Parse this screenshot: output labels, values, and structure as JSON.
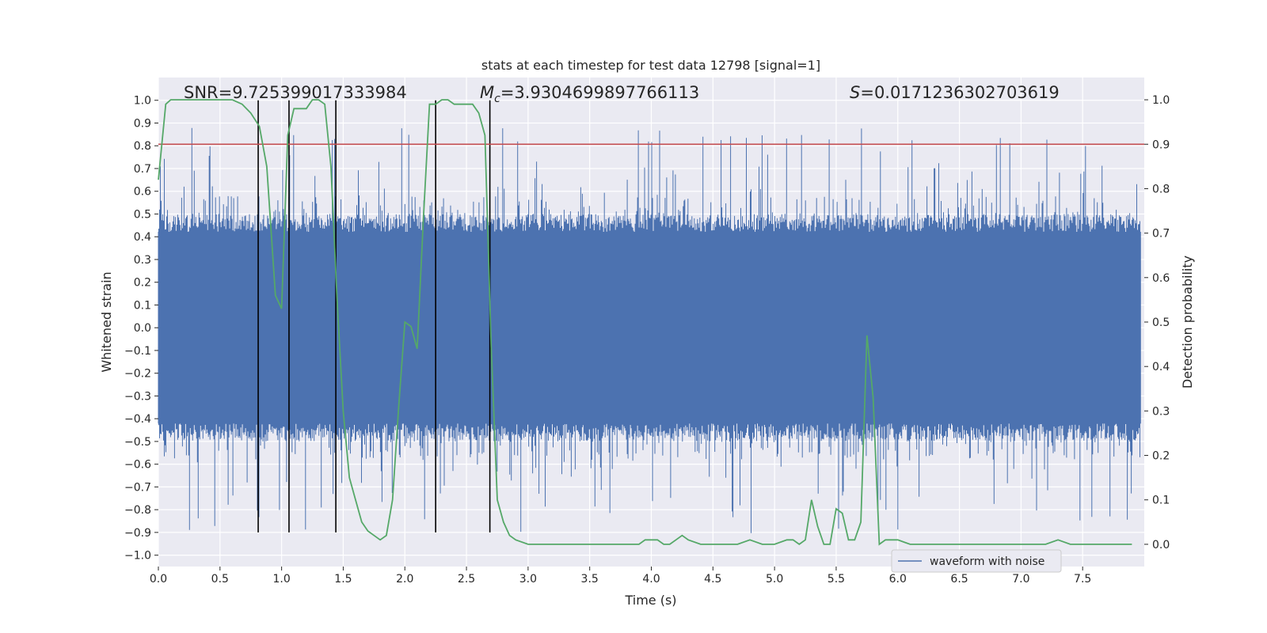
{
  "chart_data": {
    "type": "line",
    "title": "stats at each timestep for test data 12798 [signal=1]",
    "xlabel": "Time (s)",
    "ylabel": "Whitened strain",
    "y2label": "Detection probability",
    "xlim": [
      0.0,
      8.0
    ],
    "ylim": [
      -1.05,
      1.1
    ],
    "y2lim": [
      -0.05,
      1.05
    ],
    "xticks": [
      0.0,
      0.5,
      1.0,
      1.5,
      2.0,
      2.5,
      3.0,
      3.5,
      4.0,
      4.5,
      5.0,
      5.5,
      6.0,
      6.5,
      7.0,
      7.5
    ],
    "xtick_labels": [
      "0.0",
      "0.5",
      "1.0",
      "1.5",
      "2.0",
      "2.5",
      "3.0",
      "3.5",
      "4.0",
      "4.5",
      "5.0",
      "5.5",
      "6.0",
      "6.5",
      "7.0",
      "7.5"
    ],
    "yticks": [
      -1.0,
      -0.9,
      -0.8,
      -0.7,
      -0.6,
      -0.5,
      -0.4,
      -0.3,
      -0.2,
      -0.1,
      0.0,
      0.1,
      0.2,
      0.3,
      0.4,
      0.5,
      0.6,
      0.7,
      0.8,
      0.9,
      1.0
    ],
    "ytick_labels": [
      "−1.0",
      "−0.9",
      "−0.8",
      "−0.7",
      "−0.6",
      "−0.5",
      "−0.4",
      "−0.3",
      "−0.2",
      "−0.1",
      "0.0",
      "0.1",
      "0.2",
      "0.3",
      "0.4",
      "0.5",
      "0.6",
      "0.7",
      "0.8",
      "0.9",
      "1.0"
    ],
    "y2ticks": [
      0.0,
      0.1,
      0.2,
      0.3,
      0.4,
      0.5,
      0.6,
      0.7,
      0.8,
      0.9,
      1.0
    ],
    "y2tick_labels": [
      "0.0",
      "0.1",
      "0.2",
      "0.3",
      "0.4",
      "0.5",
      "0.6",
      "0.7",
      "0.8",
      "0.9",
      "1.0"
    ],
    "grid": true,
    "legend": {
      "placement": "lower-right",
      "entries": [
        "waveform with noise"
      ]
    },
    "annotations": {
      "snr_prefix": "SNR=",
      "snr_value": "9.725399017333984",
      "mc_symbol": "M",
      "mc_subscript": "c",
      "mc_value": "=3.9304699897766113",
      "s_symbol": "S",
      "s_value": "=0.0171236302703619"
    },
    "series": [
      {
        "name": "waveform with noise",
        "axis": "left",
        "color": "#4c72b0",
        "render": "dense-noise",
        "core_band": [
          -0.42,
          0.42
        ],
        "spike_max_pos": 0.88,
        "spike_max_neg": -0.91
      },
      {
        "axis": "right",
        "color": "#55a868",
        "x": [
          0.0,
          0.06,
          0.1,
          0.2,
          0.35,
          0.5,
          0.6,
          0.68,
          0.75,
          0.82,
          0.88,
          0.95,
          1.0,
          1.05,
          1.1,
          1.15,
          1.2,
          1.25,
          1.3,
          1.35,
          1.4,
          1.45,
          1.5,
          1.55,
          1.6,
          1.65,
          1.7,
          1.75,
          1.8,
          1.85,
          1.9,
          1.95,
          2.0,
          2.05,
          2.1,
          2.15,
          2.2,
          2.25,
          2.3,
          2.35,
          2.4,
          2.45,
          2.5,
          2.55,
          2.6,
          2.65,
          2.7,
          2.75,
          2.8,
          2.85,
          2.9,
          3.0,
          3.1,
          3.2,
          3.3,
          3.4,
          3.5,
          3.6,
          3.7,
          3.8,
          3.9,
          3.95,
          4.0,
          4.05,
          4.1,
          4.15,
          4.2,
          4.25,
          4.3,
          4.4,
          4.5,
          4.6,
          4.7,
          4.8,
          4.9,
          5.0,
          5.1,
          5.15,
          5.2,
          5.25,
          5.3,
          5.35,
          5.4,
          5.45,
          5.5,
          5.55,
          5.6,
          5.65,
          5.7,
          5.75,
          5.8,
          5.85,
          5.9,
          5.95,
          6.0,
          6.1,
          6.2,
          6.3,
          6.4,
          6.5,
          6.6,
          6.7,
          6.8,
          6.9,
          7.0,
          7.1,
          7.2,
          7.3,
          7.4,
          7.5,
          7.6,
          7.7,
          7.8,
          7.9
        ],
        "y": [
          0.82,
          0.99,
          1.0,
          1.0,
          1.0,
          1.0,
          1.0,
          0.99,
          0.97,
          0.94,
          0.85,
          0.56,
          0.53,
          0.92,
          0.98,
          0.98,
          0.98,
          1.0,
          1.0,
          0.99,
          0.85,
          0.55,
          0.3,
          0.15,
          0.1,
          0.05,
          0.03,
          0.02,
          0.01,
          0.02,
          0.1,
          0.31,
          0.5,
          0.49,
          0.44,
          0.73,
          0.99,
          0.99,
          1.0,
          1.0,
          0.99,
          0.99,
          0.99,
          0.99,
          0.97,
          0.92,
          0.45,
          0.1,
          0.05,
          0.02,
          0.01,
          0.0,
          0.0,
          0.0,
          0.0,
          0.0,
          0.0,
          0.0,
          0.0,
          0.0,
          0.0,
          0.01,
          0.01,
          0.01,
          0.0,
          0.0,
          0.01,
          0.02,
          0.01,
          0.0,
          0.0,
          0.0,
          0.0,
          0.01,
          0.0,
          0.0,
          0.01,
          0.01,
          0.0,
          0.01,
          0.1,
          0.04,
          0.0,
          0.0,
          0.08,
          0.07,
          0.01,
          0.01,
          0.05,
          0.47,
          0.33,
          0.0,
          0.01,
          0.01,
          0.01,
          0.0,
          0.0,
          0.0,
          0.0,
          0.0,
          0.0,
          0.0,
          0.0,
          0.0,
          0.0,
          0.0,
          0.0,
          0.01,
          0.0,
          0.0,
          0.0,
          0.0,
          0.0,
          0.0
        ]
      }
    ],
    "threshold": {
      "axis": "right",
      "value": 0.9,
      "color": "#c44e52"
    },
    "event_markers": {
      "color": "#000000",
      "y_range": [
        -0.9,
        1.0
      ],
      "x": [
        0.81,
        1.06,
        1.44,
        2.25,
        2.69
      ]
    }
  }
}
